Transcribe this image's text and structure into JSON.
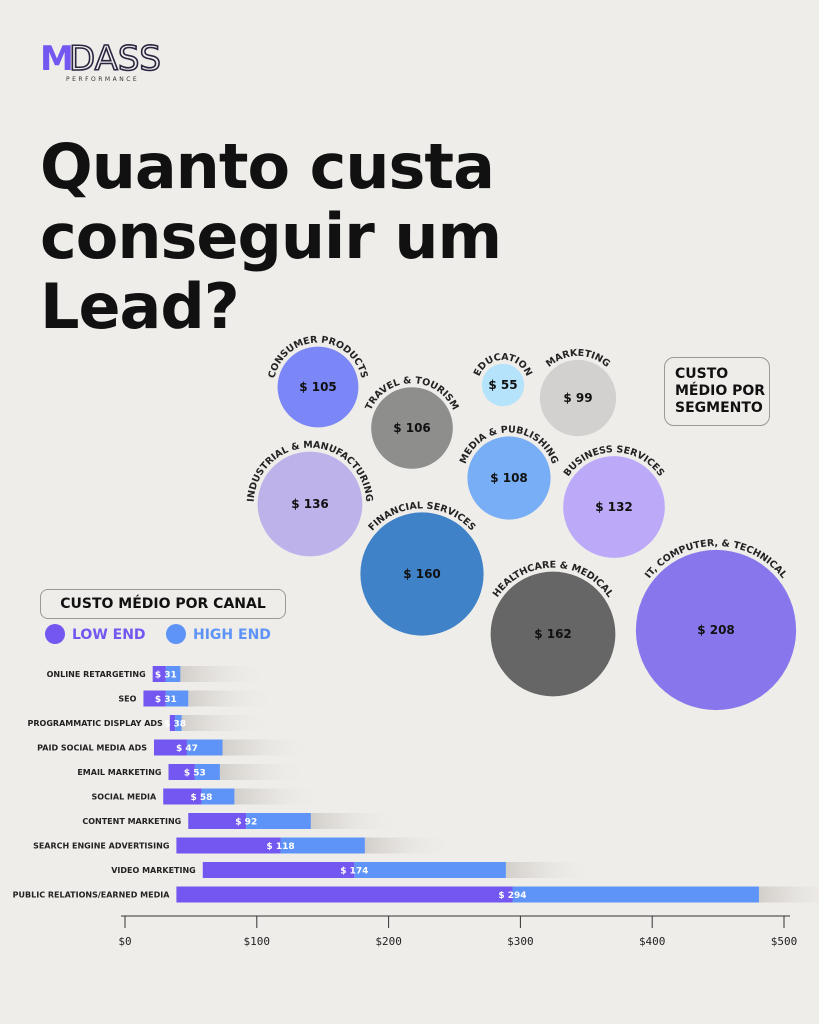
{
  "logo": {
    "mark": "M",
    "word": "DASS",
    "tagline": "PERFORMANCE"
  },
  "title": "Quanto custa conseguir um Lead?",
  "chart_data": [
    {
      "type": "bubble",
      "title": "CUSTO MÉDIO POR SEGMENTO",
      "categories": [
        "CONSUMER PRODUCTS",
        "EDUCATION",
        "MARKETING",
        "TRAVEL & TOURISM",
        "MEDIA & PUBLISHING",
        "BUSINESS SERVICES",
        "INDUSTRIAL & MANUFACTURING",
        "FINANCIAL SERVICES",
        "HEALTHCARE & MEDICAL",
        "IT, COMPUTER, & TECHNICAL"
      ],
      "values": [
        105,
        55,
        99,
        106,
        108,
        132,
        136,
        160,
        162,
        208
      ],
      "value_labels": [
        "$ 105",
        "$ 55",
        "$ 99",
        "$ 106",
        "$ 108",
        "$ 132",
        "$ 136",
        "$ 160",
        "$ 162",
        "$ 208"
      ],
      "colors": [
        "#7b86f7",
        "#b5e3fb",
        "#d2d1cf",
        "#8e8e8d",
        "#78aef5",
        "#bcaaf9",
        "#bdb3ea",
        "#3f82c8",
        "#666666",
        "#8877ec"
      ]
    },
    {
      "type": "range-bar",
      "title": "CUSTO MÉDIO POR CANAL",
      "categories": [
        "ONLINE RETARGETING",
        "SEO",
        "PROGRAMMATIC DISPLAY ADS",
        "PAID SOCIAL MEDIA ADS",
        "EMAIL MARKETING",
        "SOCIAL MEDIA",
        "CONTENT MARKETING",
        "SEARCH ENGINE ADVERTISING",
        "VIDEO MARKETING",
        "PUBLIC RELATIONS/EARNED MEDIA"
      ],
      "series": [
        {
          "name": "LOW END",
          "color": "#7457f0",
          "values": [
            21,
            14,
            34,
            22,
            33,
            29,
            48,
            39,
            59,
            39
          ]
        },
        {
          "name": "HIGH END",
          "color": "#5e94f7",
          "values": [
            42,
            48,
            43,
            74,
            72,
            83,
            141,
            182,
            289,
            481
          ]
        }
      ],
      "values": [
        31,
        31,
        38,
        47,
        53,
        58,
        92,
        118,
        174,
        294
      ],
      "value_labels": [
        "$ 31",
        "$ 31",
        "$ 38",
        "$ 47",
        "$ 53",
        "$ 58",
        "$ 92",
        "$ 118",
        "$ 174",
        "$ 294"
      ],
      "xlim": [
        0,
        500
      ],
      "xticks": [
        {
          "value": 0,
          "label": "$0"
        },
        {
          "value": 100,
          "label": "$100"
        },
        {
          "value": 200,
          "label": "$200"
        },
        {
          "value": 300,
          "label": "$300"
        },
        {
          "value": 400,
          "label": "$400"
        },
        {
          "value": 500,
          "label": "$500"
        }
      ]
    }
  ]
}
